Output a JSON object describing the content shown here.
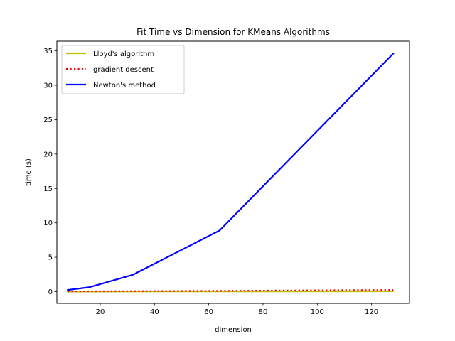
{
  "chart_data": {
    "type": "line",
    "title": "Fit Time vs Dimension for KMeans Algorithms",
    "xlabel": "dimension",
    "ylabel": "time (s)",
    "xlim": [
      4,
      134
    ],
    "ylim": [
      -1.7,
      36.4
    ],
    "xticks": [
      20,
      40,
      60,
      80,
      100,
      120
    ],
    "yticks": [
      0,
      5,
      10,
      15,
      20,
      25,
      30,
      35
    ],
    "grid": false,
    "legend_position": "top-left",
    "series": [
      {
        "name": "Lloyd's algorithm",
        "color": "#bfbf00",
        "style": "solid",
        "x": [
          8,
          16,
          32,
          64,
          128
        ],
        "y": [
          0.02,
          0.02,
          0.03,
          0.04,
          0.06
        ]
      },
      {
        "name": "gradient descent",
        "color": "#ff0000",
        "style": "dotted",
        "x": [
          8,
          16,
          32,
          64,
          128
        ],
        "y": [
          0.04,
          0.05,
          0.08,
          0.12,
          0.25
        ]
      },
      {
        "name": "Newton's method",
        "color": "#0000ff",
        "style": "solid",
        "x": [
          8,
          16,
          32,
          64,
          128
        ],
        "y": [
          0.25,
          0.65,
          2.45,
          8.9,
          34.6
        ]
      }
    ]
  }
}
